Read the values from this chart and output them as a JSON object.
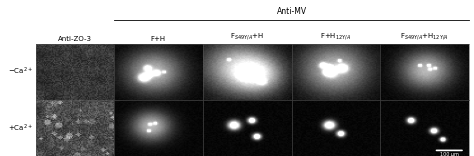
{
  "figure_width": 4.74,
  "figure_height": 1.56,
  "dpi": 100,
  "background_color": "#ffffff",
  "header_anti_mv": "Anti-MV",
  "header_anti_zo3": "Anti-ZO-3",
  "col_headers": [
    "F+H",
    "F$_{S49Y/A}$+H",
    "F+H$_{12Y/A}$",
    "F$_{S49Y/A}$+H$_{12Y/A}$"
  ],
  "row_labels": [
    "−Ca$^{2+}$",
    "+Ca$^{2+}$"
  ],
  "scale_bar_label": "100 μm",
  "text_color": "#000000",
  "label_fontsize": 5.0,
  "header_fontsize": 5.5,
  "sub_header_fontsize": 5.0
}
